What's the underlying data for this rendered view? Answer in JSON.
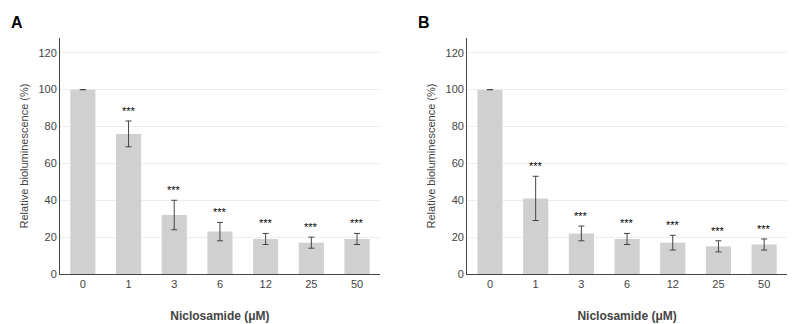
{
  "chart_data": [
    {
      "type": "bar",
      "label": "A",
      "categories": [
        "0",
        "1",
        "3",
        "6",
        "12",
        "25",
        "50"
      ],
      "values": [
        100,
        76,
        32,
        23,
        19,
        17,
        19
      ],
      "errors": [
        0,
        7,
        8,
        5,
        3,
        3,
        3
      ],
      "annotations": [
        null,
        "***",
        "***",
        "***",
        "***",
        "***",
        "***"
      ],
      "xlabel": "Niclosamide (μM)",
      "ylabel": "Relative bioluminescence (%)",
      "color": "#d0d0d0",
      "ylim": [
        0,
        128
      ],
      "yticks": [
        0,
        20,
        40,
        60,
        80,
        100,
        120
      ],
      "grid": true
    },
    {
      "type": "bar",
      "label": "B",
      "categories": [
        "0",
        "1",
        "3",
        "6",
        "12",
        "25",
        "50"
      ],
      "values": [
        100,
        41,
        22,
        19,
        17,
        15,
        16
      ],
      "errors": [
        0,
        12,
        4,
        3,
        4,
        3,
        3
      ],
      "annotations": [
        null,
        "***",
        "***",
        "***",
        "***",
        "***",
        "***"
      ],
      "xlabel": "Niclosamide (μM)",
      "ylabel": "Relative bioluminescence (%)",
      "color": "#d0d0d0",
      "ylim": [
        0,
        128
      ],
      "yticks": [
        0,
        20,
        40,
        60,
        80,
        100,
        120
      ],
      "grid": true
    }
  ]
}
